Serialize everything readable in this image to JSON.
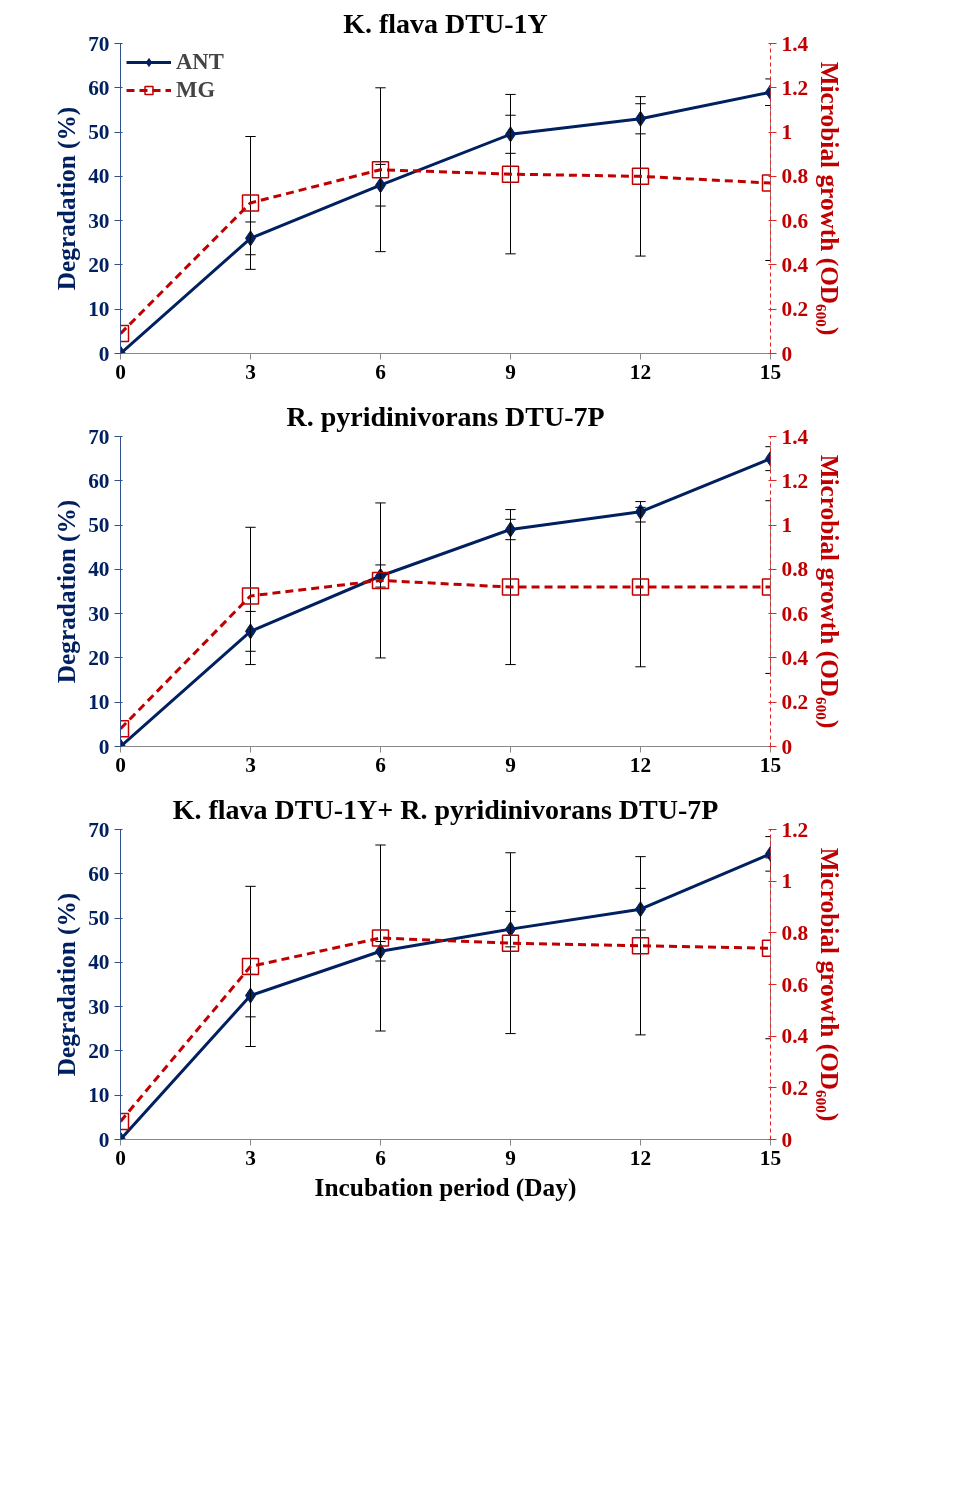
{
  "chart_data": [
    {
      "type": "line",
      "title": "K. flava DTU-1Y",
      "ylabel": "Degradation (%)",
      "y2label": "Microbial growth (OD₆₀₀)",
      "x": [
        0,
        3,
        6,
        9,
        12,
        15
      ],
      "xlim": [
        0,
        15
      ],
      "xticks": [
        0,
        3,
        6,
        9,
        12,
        15
      ],
      "ylim": [
        0,
        70
      ],
      "yticks": [
        0,
        10,
        20,
        30,
        40,
        50,
        60,
        70
      ],
      "y2lim": [
        0,
        1.4
      ],
      "y2ticks": [
        0,
        0.2,
        0.4,
        0.6,
        0.8,
        1,
        1.2,
        1.4
      ],
      "legend": "top left",
      "grid": false,
      "series": [
        {
          "name": "ANT",
          "color": "#002060",
          "marker": "diamond",
          "line_style": "solid",
          "values": [
            0,
            26,
            38,
            49.5,
            53,
            59
          ],
          "errors": [
            null,
            3.7,
            4.7,
            4.3,
            3.4,
            3
          ]
        },
        {
          "name": "MG",
          "color": "#c00000",
          "marker": "square",
          "line_style": "dashed",
          "axis": "y2",
          "values": [
            0.09,
            0.68,
            0.83,
            0.81,
            0.8,
            0.77
          ],
          "errors": [
            null,
            0.3,
            0.37,
            0.36,
            0.36,
            0.35
          ]
        }
      ]
    },
    {
      "type": "line",
      "title": "R. pyridinivorans DTU-7P",
      "ylabel": "Degradation (%)",
      "y2label": "Microbial growth (OD₆₀₀)",
      "x": [
        0,
        3,
        6,
        9,
        12,
        15
      ],
      "xlim": [
        0,
        15
      ],
      "xticks": [
        0,
        3,
        6,
        9,
        12,
        15
      ],
      "ylim": [
        0,
        70
      ],
      "yticks": [
        0,
        10,
        20,
        30,
        40,
        50,
        60,
        70
      ],
      "y2lim": [
        0,
        1.4
      ],
      "y2ticks": [
        0,
        0.2,
        0.4,
        0.6,
        0.8,
        1,
        1.2,
        1.4
      ],
      "legend": false,
      "grid": false,
      "series": [
        {
          "color": "#002060",
          "marker": "diamond",
          "line_style": "solid",
          "values": [
            0,
            26,
            38.5,
            49,
            53,
            65
          ],
          "errors": [
            null,
            4.5,
            2.5,
            2.3,
            2.3,
            2.7
          ]
        },
        {
          "color": "#c00000",
          "marker": "square",
          "line_style": "dashed",
          "axis": "y2",
          "values": [
            0.08,
            0.68,
            0.75,
            0.72,
            0.72,
            0.72
          ],
          "errors": [
            null,
            0.31,
            0.35,
            0.35,
            0.36,
            0.39
          ]
        }
      ]
    },
    {
      "type": "line",
      "title": "K. flava DTU-1Y+ R. pyridinivorans DTU-7P",
      "xlabel": "Incubation period (Day)",
      "ylabel": "Degradation (%)",
      "y2label": "Microbial growth (OD₆₀₀)",
      "x": [
        0,
        3,
        6,
        9,
        12,
        15
      ],
      "xlim": [
        0,
        15
      ],
      "xticks": [
        0,
        3,
        6,
        9,
        12,
        15
      ],
      "ylim": [
        0,
        70
      ],
      "yticks": [
        0,
        10,
        20,
        30,
        40,
        50,
        60,
        70
      ],
      "y2lim": [
        0,
        1.2
      ],
      "y2ticks": [
        0,
        0.2,
        0.4,
        0.6,
        0.8,
        1,
        1.2
      ],
      "legend": false,
      "grid": false,
      "series": [
        {
          "color": "#002060",
          "marker": "diamond",
          "line_style": "solid",
          "values": [
            0,
            32.5,
            42.5,
            47.5,
            52,
            64.5
          ],
          "errors": [
            null,
            4.8,
            2.2,
            4,
            4.7,
            3.9
          ]
        },
        {
          "color": "#c00000",
          "marker": "square",
          "line_style": "dashed",
          "axis": "y2",
          "values": [
            0.07,
            0.67,
            0.78,
            0.76,
            0.75,
            0.74
          ],
          "errors": [
            null,
            0.31,
            0.36,
            0.35,
            0.345,
            0.35
          ]
        }
      ]
    }
  ]
}
